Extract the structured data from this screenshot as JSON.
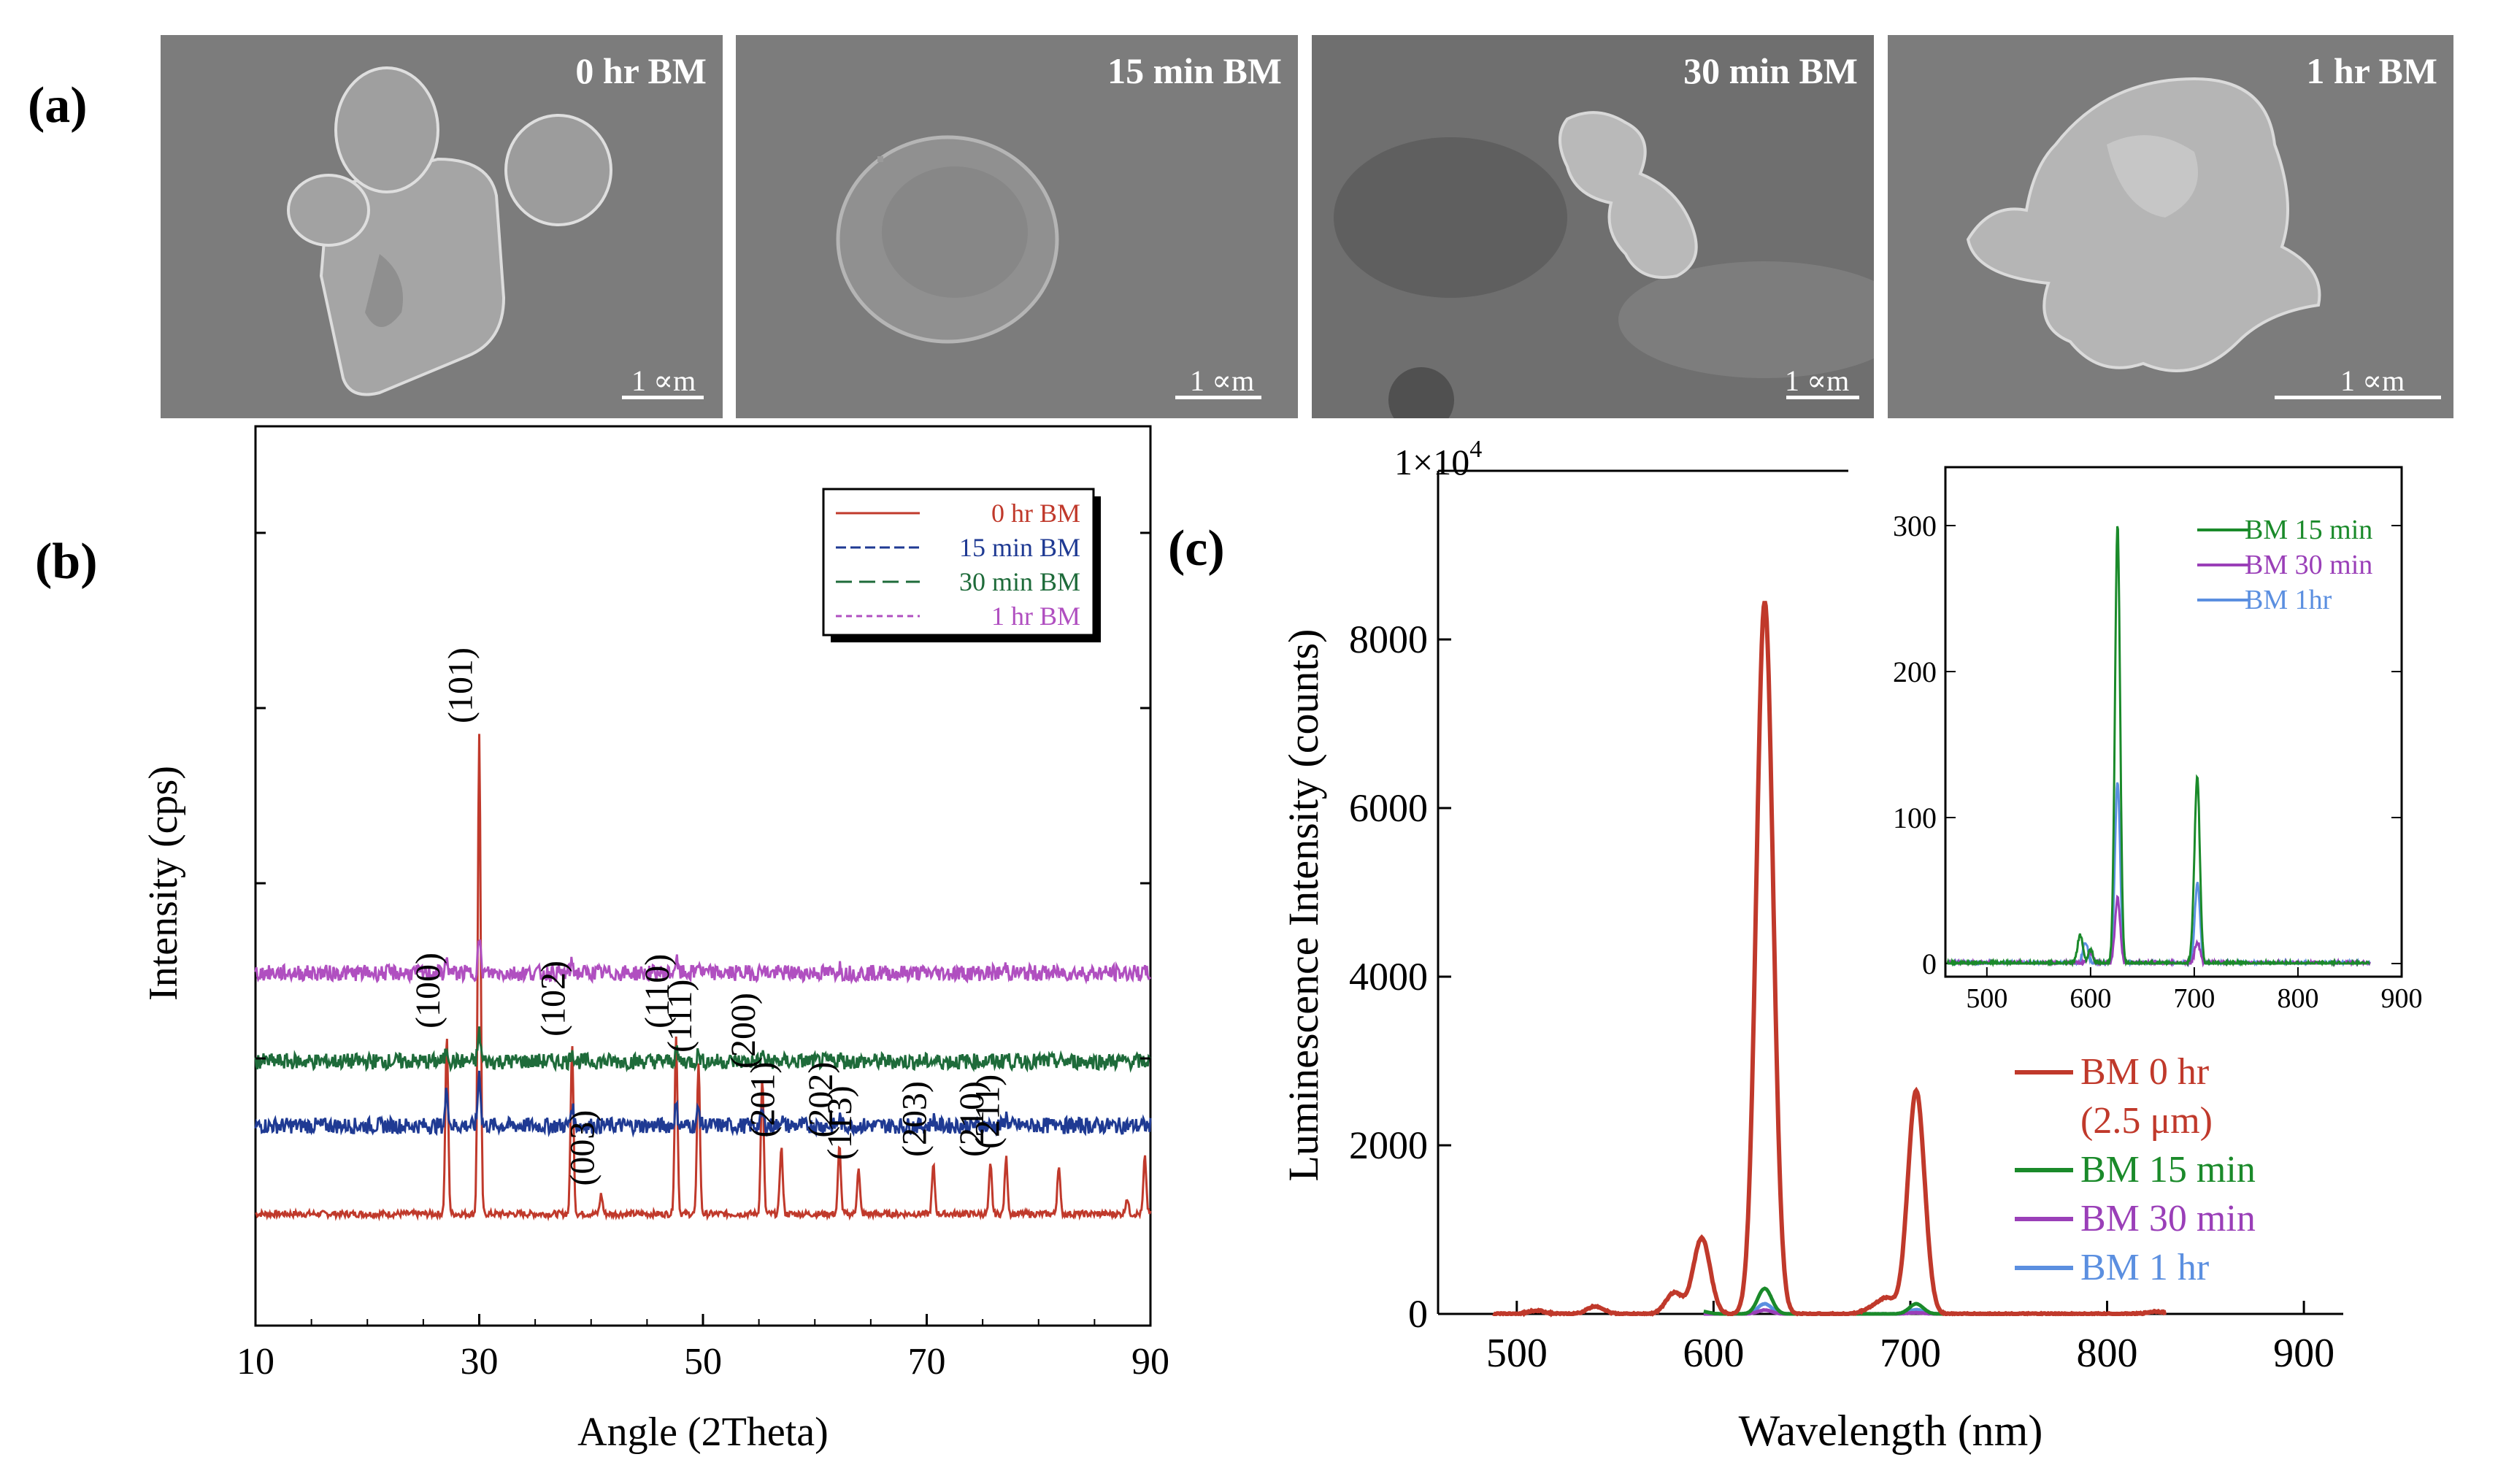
{
  "panel_labels": {
    "a": "(a)",
    "b": "(b)",
    "c": "(c)"
  },
  "sem_images": [
    {
      "title": "0 hr BM",
      "scale_label": "1 ∝m"
    },
    {
      "title": "15 min BM",
      "scale_label": "1 ∝m"
    },
    {
      "title": "30 min BM",
      "scale_label": "1 ∝m"
    },
    {
      "title": "1 hr BM",
      "scale_label": "1 ∝m"
    }
  ],
  "colors": {
    "red": "#c0392b",
    "blue": "#1f3a93",
    "green": "#1e6b3a",
    "purple": "#b04fc0",
    "lum_green": "#1a8a2a",
    "lum_purple": "#9a3fb8",
    "lum_blue": "#5b8fe0",
    "sem_bg": "#7c7c7c"
  },
  "chart_data": [
    {
      "type": "line",
      "title": "",
      "xlabel": "Angle (2Theta)",
      "ylabel": "Intensity (cps)",
      "xlim": [
        10,
        90
      ],
      "x_ticks": [
        10,
        30,
        50,
        70,
        90
      ],
      "legend": [
        "0 hr BM",
        "15 min BM",
        "30 min BM",
        "1 hr BM"
      ],
      "legend_position": "top-right",
      "series": [
        {
          "name": "0 hr BM",
          "offset": 0,
          "noise": 0.02,
          "peaks": [
            [
              27.1,
              1.1
            ],
            [
              30.0,
              3.0
            ],
            [
              38.3,
              1.05
            ],
            [
              40.9,
              0.12
            ],
            [
              47.6,
              1.1
            ],
            [
              49.6,
              0.95
            ],
            [
              55.3,
              0.85
            ],
            [
              57.0,
              0.42
            ],
            [
              62.2,
              0.42
            ],
            [
              63.9,
              0.28
            ],
            [
              70.6,
              0.3
            ],
            [
              75.7,
              0.3
            ],
            [
              77.1,
              0.35
            ],
            [
              81.8,
              0.3
            ],
            [
              87.9,
              0.1
            ],
            [
              89.5,
              0.35
            ]
          ]
        },
        {
          "name": "15 min BM",
          "offset": 0.55,
          "noise": 0.05,
          "peaks": [
            [
              27.1,
              0.22
            ],
            [
              30.0,
              0.33
            ],
            [
              38.3,
              0.12
            ],
            [
              47.6,
              0.12
            ],
            [
              49.6,
              0.1
            ],
            [
              55.3,
              0.08
            ],
            [
              57.0,
              0.05
            ],
            [
              62.2,
              0.05
            ],
            [
              70.6,
              0.04
            ],
            [
              77.1,
              0.06
            ],
            [
              81.8,
              0.05
            ]
          ]
        },
        {
          "name": "30 min BM",
          "offset": 0.95,
          "noise": 0.05,
          "peaks": [
            [
              27.1,
              0.08
            ],
            [
              30.0,
              0.18
            ],
            [
              38.3,
              0.07
            ],
            [
              47.6,
              0.06
            ],
            [
              49.6,
              0.05
            ],
            [
              55.3,
              0.04
            ],
            [
              62.2,
              0.03
            ],
            [
              77.1,
              0.03
            ]
          ]
        },
        {
          "name": "1 hr BM",
          "offset": 1.5,
          "noise": 0.05,
          "peaks": [
            [
              27.1,
              0.08
            ],
            [
              30.0,
              0.2
            ],
            [
              38.3,
              0.06
            ],
            [
              47.6,
              0.08
            ],
            [
              49.6,
              0.07
            ],
            [
              55.3,
              0.04
            ],
            [
              62.2,
              0.04
            ],
            [
              77.1,
              0.04
            ]
          ]
        }
      ],
      "peak_labels": [
        {
          "label": "(100)",
          "x": 27.1
        },
        {
          "label": "(101)",
          "x": 30.0
        },
        {
          "label": "(102)",
          "x": 38.3
        },
        {
          "label": "(003)",
          "x": 40.9
        },
        {
          "label": "(110)",
          "x": 47.6
        },
        {
          "label": "(111)",
          "x": 49.6
        },
        {
          "label": "(200)",
          "x": 55.3
        },
        {
          "label": "(201)",
          "x": 57.0
        },
        {
          "label": "(202)",
          "x": 62.2
        },
        {
          "label": "(113)",
          "x": 63.9
        },
        {
          "label": "(203)",
          "x": 70.6
        },
        {
          "label": "(210)",
          "x": 75.7
        },
        {
          "label": "(211)",
          "x": 77.1
        }
      ]
    },
    {
      "type": "line",
      "title": "",
      "xlabel": "Wavelength (nm)",
      "ylabel": "Luminescence Intensity (counts)",
      "xlim": [
        450,
        900
      ],
      "ylim": [
        0,
        10000
      ],
      "x_ticks": [
        500,
        600,
        700,
        800,
        900
      ],
      "y_ticks": [
        0,
        2000,
        4000,
        6000,
        8000
      ],
      "top_label": "1×10",
      "top_label_exp": "4",
      "legend": [
        "BM 0 hr",
        "(2.5 μm)",
        "BM 15 min",
        "BM 30 min",
        "BM 1 hr"
      ],
      "legend_position": "bottom-right",
      "series": [
        {
          "name": "BM 0 hr (2.5 μm)",
          "offset": 0,
          "noise": 8,
          "peaks": [
            [
              510,
              40
            ],
            [
              540,
              90
            ],
            [
              580,
              250
            ],
            [
              594,
              900
            ],
            [
              626,
              8450
            ],
            [
              680,
              60
            ],
            [
              688,
              180
            ],
            [
              703,
              2650
            ],
            [
              825,
              30
            ]
          ]
        },
        {
          "name": "BM 15 min",
          "offset": 0,
          "noise": 2,
          "peaks": [
            [
              594,
              30
            ],
            [
              626,
              300
            ],
            [
              703,
              120
            ]
          ]
        },
        {
          "name": "BM 30 min",
          "offset": 0,
          "noise": 2,
          "peaks": [
            [
              626,
              45
            ],
            [
              703,
              15
            ]
          ]
        },
        {
          "name": "BM 1 hr",
          "offset": 0,
          "noise": 2,
          "peaks": [
            [
              626,
              120
            ],
            [
              703,
              50
            ]
          ]
        }
      ]
    },
    {
      "type": "line",
      "title": "",
      "xlabel": "",
      "ylabel": "",
      "xlim": [
        450,
        900
      ],
      "ylim": [
        0,
        340
      ],
      "x_ticks": [
        500,
        600,
        700,
        800,
        900
      ],
      "y_ticks": [
        0,
        100,
        200,
        300
      ],
      "legend": [
        "BM 15 min",
        "BM 30 min",
        "BM 1hr"
      ],
      "legend_position": "top-right",
      "series": [
        {
          "name": "BM 15 min",
          "offset": 0,
          "noise": 1.5,
          "peaks": [
            [
              590,
              20
            ],
            [
              600,
              10
            ],
            [
              626,
              300
            ],
            [
              700,
              15
            ],
            [
              703,
              120
            ]
          ]
        },
        {
          "name": "BM 30 min",
          "offset": 0,
          "noise": 1.5,
          "peaks": [
            [
              600,
              8
            ],
            [
              626,
              45
            ],
            [
              703,
              15
            ]
          ]
        },
        {
          "name": "BM 1hr",
          "offset": 0,
          "noise": 1.5,
          "peaks": [
            [
              595,
              15
            ],
            [
              626,
              125
            ],
            [
              703,
              55
            ]
          ]
        }
      ]
    }
  ]
}
